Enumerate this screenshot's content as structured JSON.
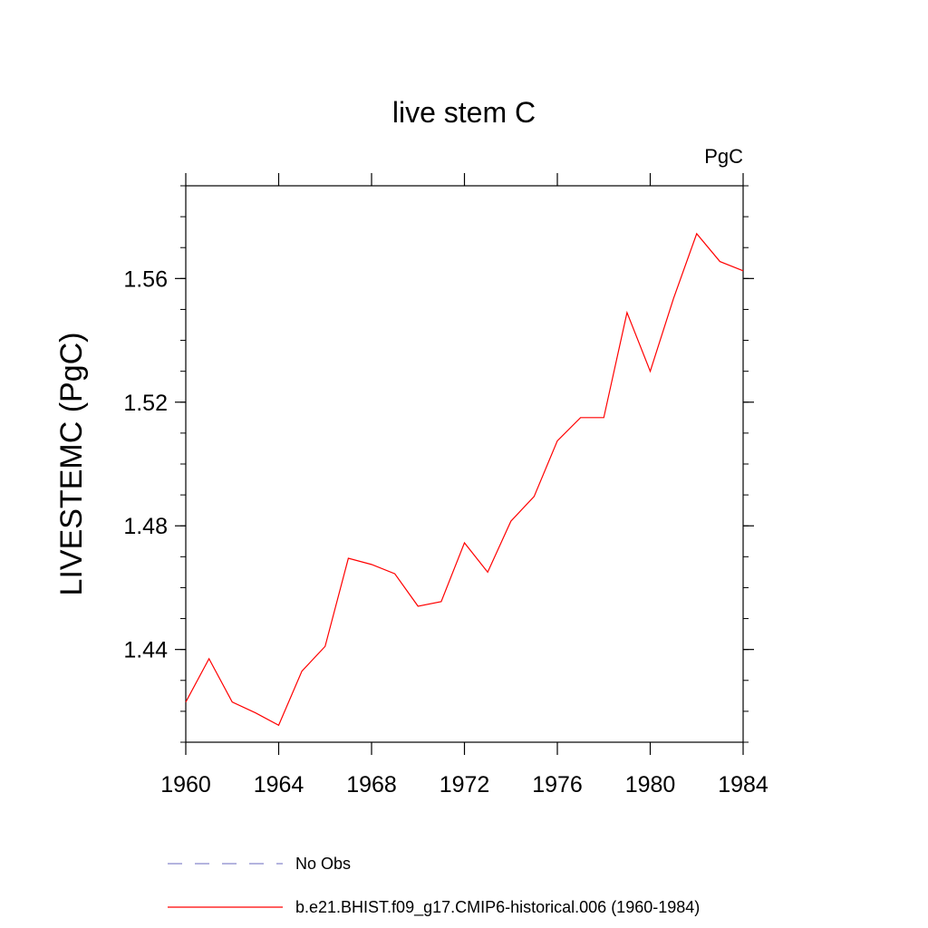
{
  "chart_data": {
    "type": "line",
    "title": "live stem C",
    "units_label": "PgC",
    "xlabel": "",
    "ylabel": "LIVESTEMC  (PgC)",
    "xlim": [
      1960,
      1984
    ],
    "ylim": [
      1.41,
      1.59
    ],
    "x_ticks": [
      1960,
      1964,
      1968,
      1972,
      1976,
      1980,
      1984
    ],
    "x_tick_labels": [
      "1960",
      "1964",
      "1968",
      "1972",
      "1976",
      "1980",
      "1984"
    ],
    "y_ticks": [
      1.44,
      1.48,
      1.52,
      1.56
    ],
    "y_tick_labels": [
      "1.44",
      "1.48",
      "1.52",
      "1.56"
    ],
    "grid": false,
    "legend_position": "bottom",
    "series": [
      {
        "name": "b.e21.BHIST.f09_g17.CMIP6-historical.006 (1960-1984)",
        "color": "#ff0000",
        "style": "solid",
        "x": [
          1960,
          1961,
          1962,
          1963,
          1964,
          1965,
          1966,
          1967,
          1968,
          1969,
          1970,
          1971,
          1972,
          1973,
          1974,
          1975,
          1976,
          1977,
          1978,
          1979,
          1980,
          1981,
          1982,
          1983,
          1984
        ],
        "values": [
          1.423,
          1.437,
          1.423,
          1.4195,
          1.4155,
          1.433,
          1.441,
          1.4695,
          1.4675,
          1.4645,
          1.454,
          1.4555,
          1.4745,
          1.465,
          1.4815,
          1.4895,
          1.5075,
          1.515,
          1.515,
          1.549,
          1.53,
          1.5535,
          1.5745,
          1.5655,
          1.5625
        ]
      }
    ],
    "legend": [
      {
        "label": "No Obs",
        "color": "#8888cc",
        "style": "dashed"
      },
      {
        "label": "b.e21.BHIST.f09_g17.CMIP6-historical.006 (1960-1984)",
        "color": "#ff0000",
        "style": "solid"
      }
    ]
  }
}
